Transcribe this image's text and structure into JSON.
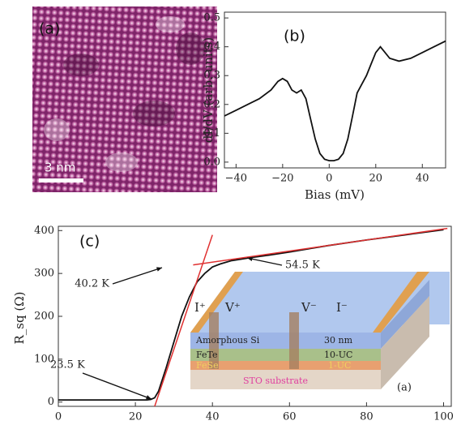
{
  "image_panel": {
    "label": "(a)",
    "scale_bar": "3 nm"
  },
  "chart_data": [
    {
      "type": "line",
      "panel_label": "(b)",
      "xlabel": "Bias (mV)",
      "ylabel": "dI/dV (arb. units)",
      "xlim": [
        -45,
        50
      ],
      "ylim": [
        -0.02,
        0.52
      ],
      "xticks": [
        {
          "value": -40,
          "label": "−40"
        },
        {
          "value": -20,
          "label": "−20"
        },
        0,
        20,
        40
      ],
      "yticks": [
        {
          "value": 0,
          "label": "0.0"
        },
        0.1,
        0.2,
        0.3,
        0.4,
        0.5
      ],
      "series": [
        {
          "color": "#111111",
          "x": [
            -45,
            -40,
            -35,
            -30,
            -25,
            -22,
            -20,
            -18,
            -16,
            -14,
            -12,
            -10,
            -8,
            -6,
            -4,
            -2,
            0,
            2,
            4,
            6,
            8,
            10,
            12,
            14,
            16,
            18,
            20,
            22,
            24,
            26,
            30,
            35,
            40,
            45,
            50
          ],
          "values": [
            0.16,
            0.18,
            0.2,
            0.22,
            0.25,
            0.28,
            0.29,
            0.28,
            0.25,
            0.24,
            0.25,
            0.22,
            0.15,
            0.08,
            0.03,
            0.01,
            0.005,
            0.005,
            0.01,
            0.03,
            0.08,
            0.16,
            0.24,
            0.27,
            0.3,
            0.34,
            0.38,
            0.4,
            0.38,
            0.36,
            0.35,
            0.36,
            0.38,
            0.4,
            0.42
          ]
        }
      ]
    },
    {
      "type": "line",
      "panel_label": "(c)",
      "ylabel": "R_sq (Ω)",
      "xlim": [
        0,
        102
      ],
      "ylim": [
        -10,
        410
      ],
      "xticks": [
        0,
        20,
        40,
        60,
        80,
        100
      ],
      "yticks": [
        0,
        100,
        200,
        300,
        400
      ],
      "annotations": [
        "40.2 K",
        "54.5 K",
        "23.5 K",
        "(a)"
      ],
      "series": [
        {
          "color": "#111111",
          "x": [
            0,
            5,
            10,
            15,
            20,
            23,
            24,
            25,
            26,
            28,
            30,
            32,
            34,
            36,
            38,
            40,
            42,
            45,
            50,
            55,
            60,
            70,
            80,
            90,
            100
          ],
          "values": [
            5,
            5,
            5,
            5,
            5,
            5,
            6,
            10,
            25,
            80,
            140,
            200,
            245,
            280,
            300,
            315,
            322,
            330,
            337,
            343,
            350,
            365,
            378,
            390,
            402
          ]
        },
        {
          "color": "#e03030",
          "x": [
            25,
            40
          ],
          "values": [
            -10,
            390
          ]
        },
        {
          "color": "#e03030",
          "x": [
            35,
            101
          ],
          "values": [
            320,
            405
          ]
        }
      ],
      "inset": {
        "top_layer": "Amorphous Si",
        "top_thickness": "30 nm",
        "mid_layer": "FeTe",
        "mid_thickness": "10-UC",
        "low_layer": "FeSe",
        "low_thickness": "1-UC",
        "substrate": "STO substrate",
        "contacts": [
          "I⁺",
          "V⁺",
          "V⁻",
          "I⁻"
        ]
      }
    }
  ]
}
